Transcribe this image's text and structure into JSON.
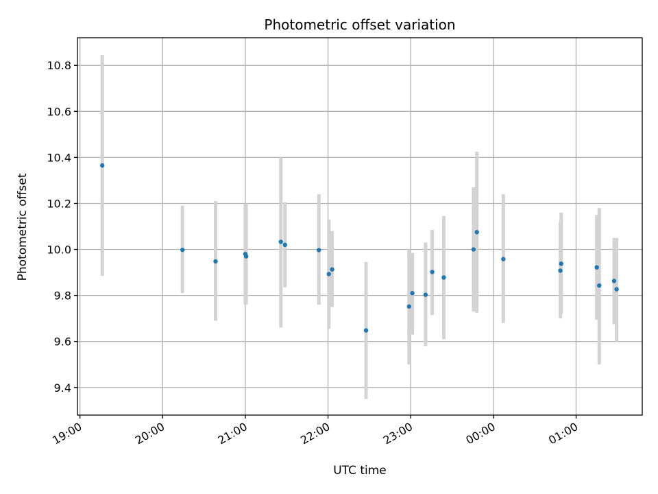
{
  "chart_data": {
    "type": "scatter",
    "title": "Photometric offset variation",
    "xlabel": "UTC time",
    "ylabel": "Photometric offset",
    "x_unit": "hours since 19:00 UTC",
    "xlim": [
      -0.03,
      6.8
    ],
    "ylim": [
      9.28,
      10.92
    ],
    "grid": true,
    "x_ticks": [
      {
        "value": 0,
        "label": "19:00"
      },
      {
        "value": 1,
        "label": "20:00"
      },
      {
        "value": 2,
        "label": "21:00"
      },
      {
        "value": 3,
        "label": "22:00"
      },
      {
        "value": 4,
        "label": "23:00"
      },
      {
        "value": 5,
        "label": "00:00"
      },
      {
        "value": 6,
        "label": "01:00"
      }
    ],
    "y_ticks": [
      {
        "value": 9.4,
        "label": "9.4"
      },
      {
        "value": 9.6,
        "label": "9.6"
      },
      {
        "value": 9.8,
        "label": "9.8"
      },
      {
        "value": 10.0,
        "label": "10.0"
      },
      {
        "value": 10.2,
        "label": "10.2"
      },
      {
        "value": 10.4,
        "label": "10.4"
      },
      {
        "value": 10.6,
        "label": "10.6"
      },
      {
        "value": 10.8,
        "label": "10.8"
      }
    ],
    "colors": {
      "point": "#1f77b4",
      "errorbar": "#d3d3d3"
    },
    "points": [
      {
        "x": 0.27,
        "y": 10.365,
        "ylo": 9.885,
        "yhi": 10.845
      },
      {
        "x": 1.24,
        "y": 9.998,
        "ylo": 9.81,
        "yhi": 10.19
      },
      {
        "x": 1.64,
        "y": 9.948,
        "ylo": 9.69,
        "yhi": 10.21
      },
      {
        "x": 2.0,
        "y": 9.98,
        "ylo": 9.76,
        "yhi": 10.2
      },
      {
        "x": 2.01,
        "y": 9.97,
        "ylo": 9.76,
        "yhi": 10.2
      },
      {
        "x": 2.43,
        "y": 10.033,
        "ylo": 9.66,
        "yhi": 10.4
      },
      {
        "x": 2.48,
        "y": 10.02,
        "ylo": 9.835,
        "yhi": 10.205
      },
      {
        "x": 2.89,
        "y": 9.997,
        "ylo": 9.76,
        "yhi": 10.24
      },
      {
        "x": 3.01,
        "y": 9.893,
        "ylo": 9.655,
        "yhi": 10.13
      },
      {
        "x": 3.05,
        "y": 9.913,
        "ylo": 9.75,
        "yhi": 10.08
      },
      {
        "x": 3.46,
        "y": 9.648,
        "ylo": 9.35,
        "yhi": 9.945
      },
      {
        "x": 3.98,
        "y": 9.752,
        "ylo": 9.5,
        "yhi": 10.0
      },
      {
        "x": 4.02,
        "y": 9.81,
        "ylo": 9.63,
        "yhi": 9.985
      },
      {
        "x": 4.18,
        "y": 9.803,
        "ylo": 9.58,
        "yhi": 10.03
      },
      {
        "x": 4.26,
        "y": 9.902,
        "ylo": 9.715,
        "yhi": 10.085
      },
      {
        "x": 4.4,
        "y": 9.878,
        "ylo": 9.61,
        "yhi": 10.145
      },
      {
        "x": 4.76,
        "y": 10.0,
        "ylo": 9.73,
        "yhi": 10.27
      },
      {
        "x": 4.8,
        "y": 10.075,
        "ylo": 9.725,
        "yhi": 10.425
      },
      {
        "x": 5.12,
        "y": 9.958,
        "ylo": 9.68,
        "yhi": 10.24
      },
      {
        "x": 5.81,
        "y": 9.908,
        "ylo": 9.7,
        "yhi": 10.12
      },
      {
        "x": 5.82,
        "y": 9.938,
        "ylo": 9.72,
        "yhi": 10.16
      },
      {
        "x": 6.25,
        "y": 9.922,
        "ylo": 9.695,
        "yhi": 10.15
      },
      {
        "x": 6.28,
        "y": 9.843,
        "ylo": 9.5,
        "yhi": 10.18
      },
      {
        "x": 6.46,
        "y": 9.863,
        "ylo": 9.675,
        "yhi": 10.05
      },
      {
        "x": 6.49,
        "y": 9.827,
        "ylo": 9.6,
        "yhi": 10.05
      }
    ]
  }
}
